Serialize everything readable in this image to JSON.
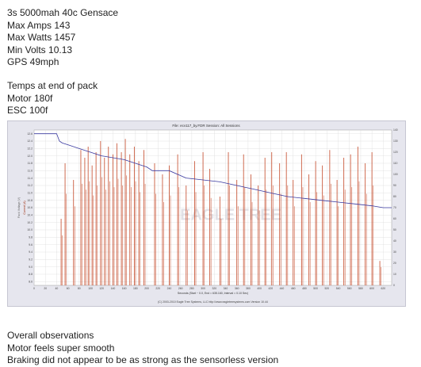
{
  "notes_top": {
    "line1": "3s 5000mah 40c Gensace",
    "line2": "Max Amps 143",
    "line3": "Max Watts 1457",
    "line4": "Min Volts 10.13",
    "line5": "GPS 49mph",
    "line6": "Temps at end of pack",
    "line7": "Motor 180f",
    "line8": "ESC 100f"
  },
  "notes_bottom": {
    "line1": "Overall observations",
    "line2": "Motor feels super smooth",
    "line3": "Braking did not appear to be as strong as the sensorless version"
  },
  "chart_data": {
    "type": "line",
    "title": "File: ecv117_by.FDR   Session: All Sessions",
    "xlabel": "Seconds  (Start ~ 0.0, End = 635.160, Interval = 0.10 Sec)",
    "ylabel_left": "Pack Voltage (V)",
    "ylabel_right": "Current (A)",
    "xlim": [
      0,
      635
    ],
    "ylim_left": [
      8.5,
      12.7
    ],
    "ylim_right": [
      0,
      140
    ],
    "x_ticks": [
      0,
      20,
      40,
      60,
      80,
      100,
      120,
      140,
      160,
      180,
      200,
      220,
      240,
      260,
      280,
      300,
      320,
      340,
      360,
      380,
      400,
      420,
      440,
      460,
      480,
      500,
      520,
      540,
      560,
      580,
      600,
      620
    ],
    "y_ticks_left": [
      12.6,
      12.4,
      12.2,
      12.0,
      11.8,
      11.6,
      11.4,
      11.2,
      11.0,
      10.8,
      10.6,
      10.4,
      10.2,
      10.0,
      9.8,
      9.6,
      9.4,
      9.2,
      9.0,
      8.8,
      8.6
    ],
    "y_ticks_right": [
      140,
      130,
      120,
      110,
      100,
      90,
      80,
      70,
      60,
      50,
      40,
      30,
      20,
      10,
      0
    ],
    "grid": true,
    "footer": "(C) 2003-2010 Eagle Tree Systems, LLC   http://www.eagletreesystems.com   Version 10.44",
    "watermark": "EAGLE TREE",
    "colors": {
      "voltage": "#3a3aa0",
      "current": "#c2401e",
      "background": "#ffffff",
      "frame": "#c6c6d2"
    },
    "series": [
      {
        "key": "voltage",
        "x": [
          0,
          10,
          20,
          30,
          40,
          45,
          50,
          60,
          80,
          100,
          120,
          140,
          160,
          180,
          190,
          200,
          210,
          240,
          270,
          300,
          330,
          360,
          390,
          420,
          450,
          480,
          510,
          540,
          570,
          600,
          620,
          635
        ],
        "values": [
          12.6,
          12.6,
          12.6,
          12.6,
          12.6,
          12.4,
          12.35,
          12.3,
          12.2,
          12.1,
          12.0,
          11.95,
          11.9,
          11.8,
          11.75,
          11.7,
          11.6,
          11.6,
          11.4,
          11.35,
          11.3,
          11.2,
          11.1,
          11.0,
          10.9,
          10.85,
          10.8,
          10.75,
          10.7,
          10.65,
          10.6,
          10.6
        ]
      },
      {
        "key": "current",
        "x": [
          48,
          55,
          70,
          83,
          90,
          96,
          103,
          110,
          118,
          125,
          132,
          140,
          147,
          155,
          162,
          170,
          178,
          186,
          195,
          214,
          228,
          240,
          255,
          270,
          285,
          300,
          312,
          330,
          345,
          360,
          372,
          385,
          398,
          410,
          422,
          436,
          448,
          460,
          475,
          488,
          500,
          512,
          525,
          538,
          550,
          562,
          575,
          588,
          600,
          614
        ],
        "values": [
          60,
          110,
          95,
          122,
          115,
          125,
          108,
          120,
          130,
          115,
          125,
          118,
          128,
          120,
          132,
          118,
          125,
          112,
          122,
          110,
          100,
          108,
          118,
          90,
          112,
          120,
          105,
          80,
          120,
          95,
          118,
          100,
          90,
          115,
          120,
          110,
          120,
          95,
          118,
          100,
          112,
          108,
          122,
          95,
          115,
          118,
          125,
          110,
          120,
          22
        ]
      }
    ]
  }
}
